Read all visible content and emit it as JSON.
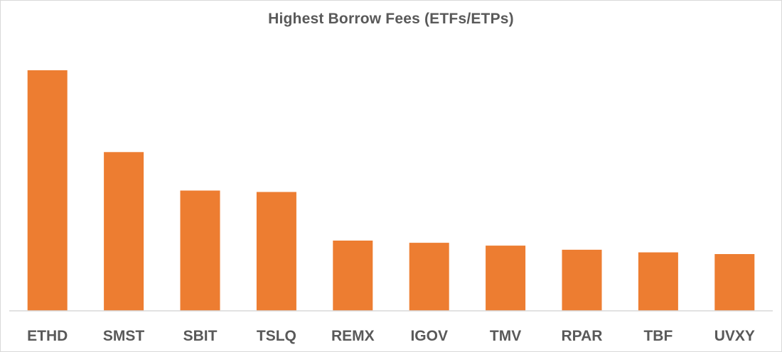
{
  "chart_data": {
    "type": "bar",
    "title": "Highest Borrow Fees (ETFs/ETPs)",
    "categories": [
      "ETHD",
      "SMST",
      "SBIT",
      "TSLQ",
      "REMX",
      "IGOV",
      "TMV",
      "RPAR",
      "TBF",
      "UVXY"
    ],
    "values": [
      100,
      66,
      50,
      49.4,
      29.2,
      28.3,
      27.1,
      25.4,
      24.3,
      23.6
    ],
    "xlabel": "",
    "ylabel": "",
    "ylim": [
      0,
      100
    ],
    "grid": false,
    "legend": "none",
    "bar_color": "#ED7D31",
    "axis_color": "#D9D9D9"
  }
}
